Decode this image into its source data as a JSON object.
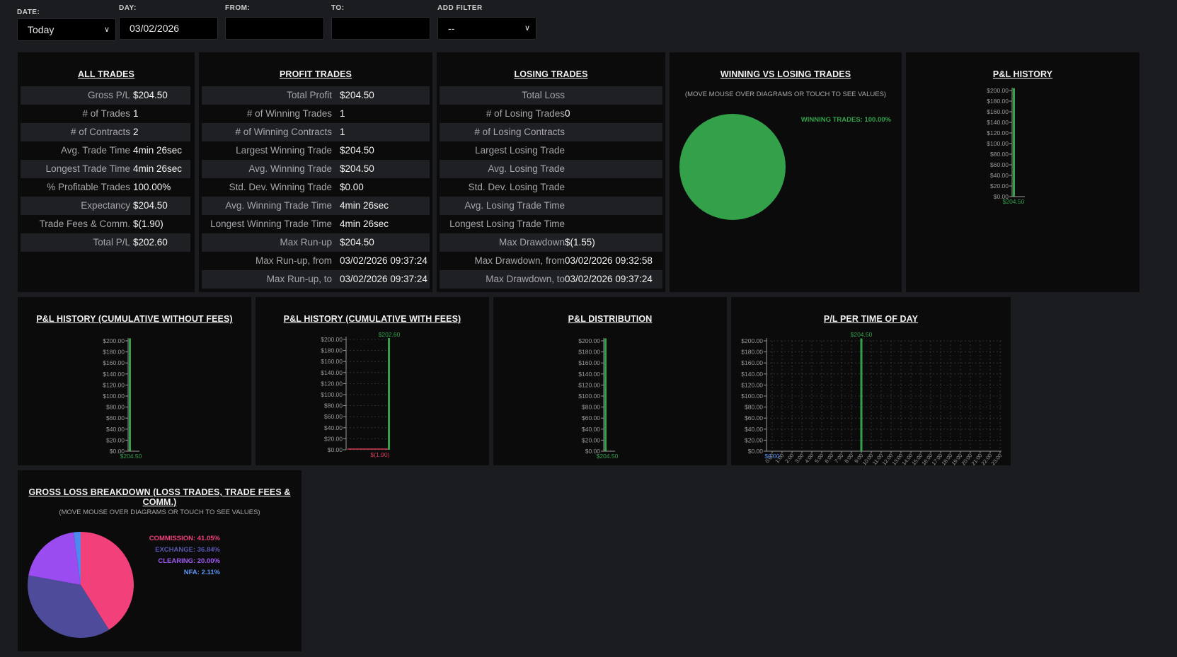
{
  "filters": {
    "date": {
      "label": "DATE:",
      "value": "Today"
    },
    "day": {
      "label": "DAY:",
      "value": "03/02/2026"
    },
    "from": {
      "label": "FROM:",
      "value": ""
    },
    "to": {
      "label": "TO:",
      "value": ""
    },
    "add_filter": {
      "label": "ADD FILTER",
      "value": "--"
    }
  },
  "all_trades": {
    "title": "ALL TRADES",
    "rows": [
      {
        "label": "Gross P/L",
        "value": "$204.50"
      },
      {
        "label": "# of Trades",
        "value": "1"
      },
      {
        "label": "# of Contracts",
        "value": "2"
      },
      {
        "label": "Avg. Trade Time",
        "value": "4min 26sec"
      },
      {
        "label": "Longest Trade Time",
        "value": "4min 26sec"
      },
      {
        "label": "% Profitable Trades",
        "value": "100.00%"
      },
      {
        "label": "Expectancy",
        "value": "$204.50"
      },
      {
        "label": "Trade Fees & Comm.",
        "value": "$(1.90)"
      },
      {
        "label": "Total P/L",
        "value": "$202.60"
      }
    ]
  },
  "profit_trades": {
    "title": "PROFIT TRADES",
    "rows": [
      {
        "label": "Total Profit",
        "value": "$204.50"
      },
      {
        "label": "# of Winning Trades",
        "value": "1"
      },
      {
        "label": "# of Winning Contracts",
        "value": "1"
      },
      {
        "label": "Largest Winning Trade",
        "value": "$204.50"
      },
      {
        "label": "Avg. Winning Trade",
        "value": "$204.50"
      },
      {
        "label": "Std. Dev. Winning Trade",
        "value": "$0.00"
      },
      {
        "label": "Avg. Winning Trade Time",
        "value": "4min 26sec"
      },
      {
        "label": "Longest Winning Trade Time",
        "value": "4min 26sec"
      },
      {
        "label": "Max Run-up",
        "value": "$204.50"
      },
      {
        "label": "Max Run-up, from",
        "value": "03/02/2026 09:37:24"
      },
      {
        "label": "Max Run-up, to",
        "value": "03/02/2026 09:37:24"
      }
    ]
  },
  "losing_trades": {
    "title": "LOSING TRADES",
    "rows": [
      {
        "label": "Total Loss",
        "value": ""
      },
      {
        "label": "# of Losing Trades",
        "value": "0"
      },
      {
        "label": "# of Losing Contracts",
        "value": ""
      },
      {
        "label": "Largest Losing Trade",
        "value": ""
      },
      {
        "label": "Avg. Losing Trade",
        "value": ""
      },
      {
        "label": "Std. Dev. Losing Trade",
        "value": ""
      },
      {
        "label": "Avg. Losing Trade Time",
        "value": ""
      },
      {
        "label": "Longest Losing Trade Time",
        "value": ""
      },
      {
        "label": "Max Drawdown",
        "value": "$(1.55)"
      },
      {
        "label": "Max Drawdown, from",
        "value": "03/02/2026 09:32:58"
      },
      {
        "label": "Max Drawdown, to",
        "value": "03/02/2026 09:37:24"
      }
    ]
  },
  "hover_note": "(MOVE MOUSE OVER DIAGRAMS OR TOUCH TO SEE VALUES)",
  "colors": {
    "green": "#33a04a",
    "red": "#d64055",
    "axis": "#9a9a9a",
    "commission": "#f2407a",
    "exchange": "#4e4c9a",
    "clearing": "#9b4cf0",
    "nfa": "#4d8af0"
  },
  "y_ticks": [
    "$200.00",
    "$180.00",
    "$160.00",
    "$140.00",
    "$120.00",
    "$100.00",
    "$80.00",
    "$60.00",
    "$40.00",
    "$20.00",
    "$0.00"
  ],
  "charts": {
    "win_vs_lose": {
      "title": "WINNING VS LOSING TRADES",
      "legend": "WINNING TRADES: 100.00%",
      "chart_data": {
        "type": "pie",
        "labels": [
          "WINNING TRADES"
        ],
        "values": [
          100.0
        ]
      }
    },
    "pl_history": {
      "title": "P&L HISTORY",
      "bar_label": "$204.50",
      "chart_data": {
        "type": "bar",
        "values": [
          204.5
        ],
        "ylim": [
          0,
          200
        ]
      }
    },
    "cum_no_fees": {
      "title": "P&L HISTORY (CUMULATIVE WITHOUT FEES)",
      "bar_label": "$204.50",
      "chart_data": {
        "type": "bar",
        "values": [
          204.5
        ],
        "ylim": [
          0,
          200
        ]
      }
    },
    "cum_with_fees": {
      "title": "P&L HISTORY (CUMULATIVE WITH FEES)",
      "top_label": "$202.60",
      "bottom_label": "$(1.90)",
      "chart_data": {
        "type": "line",
        "values": [
          -1.9,
          202.6
        ],
        "ylim": [
          0,
          200
        ]
      }
    },
    "distribution": {
      "title": "P&L DISTRIBUTION",
      "bar_label": "$204.50",
      "chart_data": {
        "type": "bar",
        "values": [
          204.5
        ],
        "ylim": [
          0,
          200
        ]
      }
    },
    "time_of_day": {
      "title": "P/L PER TIME OF DAY",
      "top_label": "$204.50",
      "zero_label": "$0.00",
      "chart_data": {
        "type": "bar",
        "categories": [
          "0:00",
          "1:00",
          "2:00",
          "3:00",
          "4:00",
          "5:00",
          "6:00",
          "7:00",
          "8:00",
          "9:00",
          "10:00",
          "11:00",
          "12:00",
          "13:00",
          "14:00",
          "15:00",
          "16:00",
          "17:00",
          "18:00",
          "19:00",
          "20:00",
          "21:00",
          "22:00",
          "23:00"
        ],
        "values": [
          0,
          0,
          0,
          0,
          0,
          0,
          0,
          0,
          0,
          204.5,
          0,
          0,
          0,
          0,
          0,
          0,
          0,
          0,
          0,
          0,
          0,
          0,
          0,
          0
        ],
        "ylim": [
          0,
          200
        ]
      }
    },
    "gross_loss": {
      "title": "GROSS LOSS BREAKDOWN (LOSS TRADES, TRADE FEES & COMM.)",
      "legend": [
        {
          "text": "COMMISSION: 41.05%",
          "color": "#f2407a"
        },
        {
          "text": "EXCHANGE: 36.84%",
          "color": "#5a58b0"
        },
        {
          "text": "CLEARING: 20.00%",
          "color": "#a25af5"
        },
        {
          "text": "NFA: 2.11%",
          "color": "#5a95f5"
        }
      ],
      "chart_data": {
        "type": "pie",
        "labels": [
          "COMMISSION",
          "EXCHANGE",
          "CLEARING",
          "NFA"
        ],
        "values": [
          41.05,
          36.84,
          20.0,
          2.11
        ]
      }
    }
  }
}
